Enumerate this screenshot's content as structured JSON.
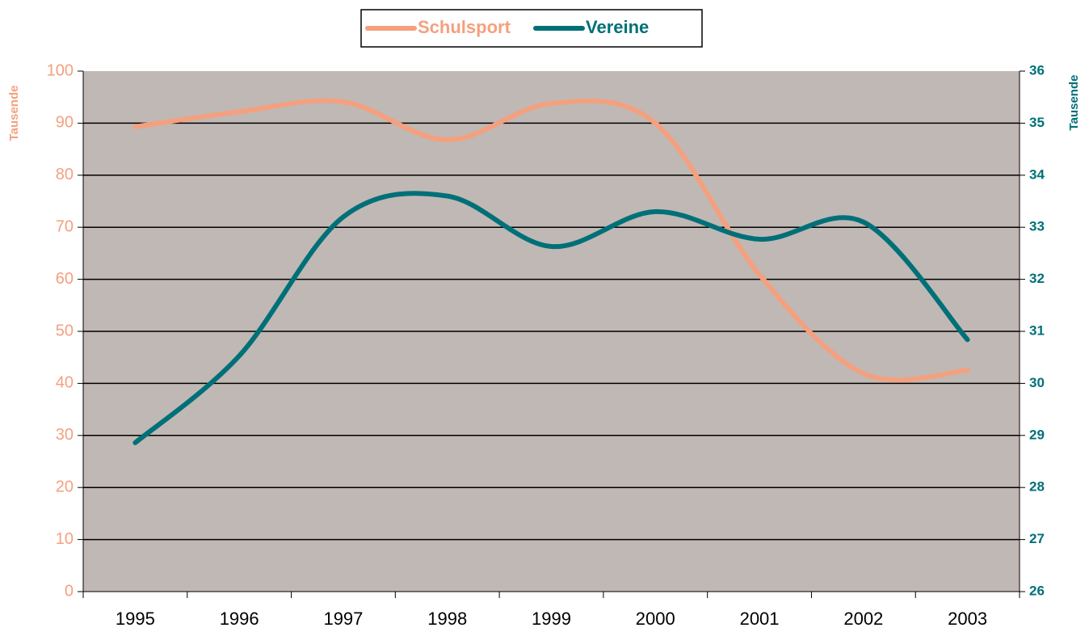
{
  "chart_data": {
    "type": "line",
    "categories": [
      "1995",
      "1996",
      "1997",
      "1998",
      "1999",
      "2000",
      "2001",
      "2002",
      "2003"
    ],
    "series": [
      {
        "name": "Schulsport",
        "color": "#f4a07f",
        "values": [
          89.3,
          92.2,
          94.1,
          86.8,
          93.8,
          90,
          60.9,
          41.9,
          42.5
        ]
      },
      {
        "name": "Vereine",
        "color": "#007078",
        "axis": "y2",
        "values": [
          28.86,
          30.53,
          33.2,
          33.6,
          32.63,
          33.3,
          32.77,
          33.1,
          30.84
        ]
      }
    ],
    "ylabel": "Tausende",
    "y2label": "Tausende",
    "ylim": [
      0,
      100
    ],
    "yticks": [
      0,
      10,
      20,
      30,
      40,
      50,
      60,
      70,
      80,
      90,
      100
    ],
    "y2lim": [
      26,
      36
    ],
    "y2ticks": [
      26,
      27,
      28,
      29,
      30,
      31,
      32,
      33,
      34,
      35,
      36
    ],
    "grid": true,
    "legend": "top",
    "smooth": true
  }
}
